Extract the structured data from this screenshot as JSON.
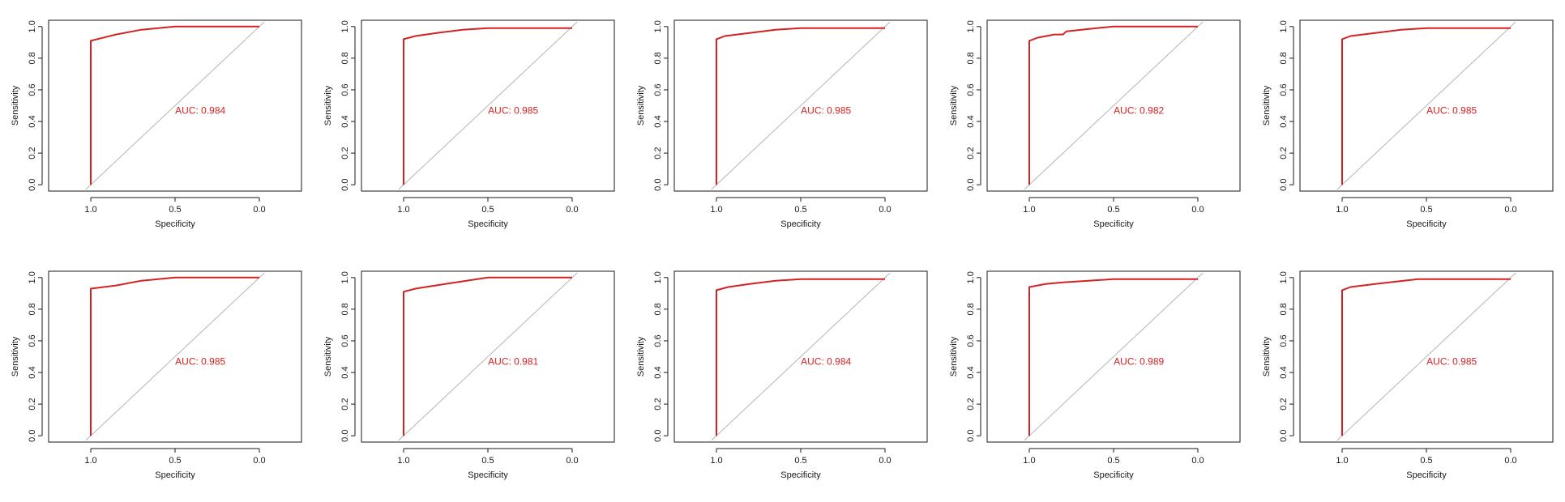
{
  "colors": {
    "roc": "#d32222",
    "diagonal": "#b5b5b5",
    "axis": "#1a1a1a"
  },
  "chart_data": [
    {
      "type": "line",
      "xlabel": "Specificity",
      "ylabel": "Sensitivity",
      "xlim": [
        1.0,
        0.0
      ],
      "ylim": [
        0,
        1
      ],
      "x_ticks": [
        "1.0",
        "0.5",
        "0.0"
      ],
      "y_ticks": [
        "0.0",
        "0.2",
        "0.4",
        "0.6",
        "0.8",
        "1.0"
      ],
      "annotation": "AUC: 0.984",
      "series": [
        {
          "x": [
            1.0,
            1.0,
            0.85,
            0.7,
            0.5,
            0.0
          ],
          "y": [
            0.0,
            0.91,
            0.95,
            0.98,
            1.0,
            1.0
          ]
        }
      ]
    },
    {
      "type": "line",
      "xlabel": "Specificity",
      "ylabel": "Sensitivity",
      "xlim": [
        1.0,
        0.0
      ],
      "ylim": [
        0,
        1
      ],
      "x_ticks": [
        "1.0",
        "0.5",
        "0.0"
      ],
      "y_ticks": [
        "0.0",
        "0.2",
        "0.4",
        "0.6",
        "0.8",
        "1.0"
      ],
      "annotation": "AUC: 0.985",
      "series": [
        {
          "x": [
            1.0,
            1.0,
            0.93,
            0.8,
            0.65,
            0.5,
            0.0
          ],
          "y": [
            0.0,
            0.92,
            0.94,
            0.96,
            0.98,
            0.99,
            0.99
          ]
        }
      ]
    },
    {
      "type": "line",
      "xlabel": "Specificity",
      "ylabel": "Sensitivity",
      "xlim": [
        1.0,
        0.0
      ],
      "ylim": [
        0,
        1
      ],
      "x_ticks": [
        "1.0",
        "0.5",
        "0.0"
      ],
      "y_ticks": [
        "0.0",
        "0.2",
        "0.4",
        "0.6",
        "0.8",
        "1.0"
      ],
      "annotation": "AUC: 0.985",
      "series": [
        {
          "x": [
            1.0,
            1.0,
            0.95,
            0.8,
            0.65,
            0.5,
            0.0
          ],
          "y": [
            0.0,
            0.92,
            0.94,
            0.96,
            0.98,
            0.99,
            0.99
          ]
        }
      ]
    },
    {
      "type": "line",
      "xlabel": "Specificity",
      "ylabel": "Sensitivity",
      "xlim": [
        1.0,
        0.0
      ],
      "ylim": [
        0,
        1
      ],
      "x_ticks": [
        "1.0",
        "0.5",
        "0.0"
      ],
      "y_ticks": [
        "0.0",
        "0.2",
        "0.4",
        "0.6",
        "0.8",
        "1.0"
      ],
      "annotation": "AUC: 0.982",
      "series": [
        {
          "x": [
            1.0,
            1.0,
            0.95,
            0.85,
            0.8,
            0.78,
            0.6,
            0.5,
            0.0
          ],
          "y": [
            0.0,
            0.91,
            0.93,
            0.95,
            0.95,
            0.97,
            0.99,
            1.0,
            1.0
          ]
        }
      ]
    },
    {
      "type": "line",
      "xlabel": "Specificity",
      "ylabel": "Sensitivity",
      "xlim": [
        1.0,
        0.0
      ],
      "ylim": [
        0,
        1
      ],
      "x_ticks": [
        "1.0",
        "0.5",
        "0.0"
      ],
      "y_ticks": [
        "0.0",
        "0.2",
        "0.4",
        "0.6",
        "0.8",
        "1.0"
      ],
      "annotation": "AUC: 0.985",
      "series": [
        {
          "x": [
            1.0,
            1.0,
            0.95,
            0.8,
            0.65,
            0.5,
            0.0
          ],
          "y": [
            0.0,
            0.92,
            0.94,
            0.96,
            0.98,
            0.99,
            0.99
          ]
        }
      ]
    },
    {
      "type": "line",
      "xlabel": "Specificity",
      "ylabel": "Sensitivity",
      "xlim": [
        1.0,
        0.0
      ],
      "ylim": [
        0,
        1
      ],
      "x_ticks": [
        "1.0",
        "0.5",
        "0.0"
      ],
      "y_ticks": [
        "0.0",
        "0.2",
        "0.4",
        "0.6",
        "0.8",
        "1.0"
      ],
      "annotation": "AUC: 0.985",
      "series": [
        {
          "x": [
            1.0,
            1.0,
            0.85,
            0.7,
            0.5,
            0.0
          ],
          "y": [
            0.0,
            0.93,
            0.95,
            0.98,
            1.0,
            1.0
          ]
        }
      ]
    },
    {
      "type": "line",
      "xlabel": "Specificity",
      "ylabel": "Sensitivity",
      "xlim": [
        1.0,
        0.0
      ],
      "ylim": [
        0,
        1
      ],
      "x_ticks": [
        "1.0",
        "0.5",
        "0.0"
      ],
      "y_ticks": [
        "0.0",
        "0.2",
        "0.4",
        "0.6",
        "0.8",
        "1.0"
      ],
      "annotation": "AUC: 0.981",
      "series": [
        {
          "x": [
            1.0,
            1.0,
            0.93,
            0.75,
            0.5,
            0.0
          ],
          "y": [
            0.0,
            0.91,
            0.93,
            0.96,
            1.0,
            1.0
          ]
        }
      ]
    },
    {
      "type": "line",
      "xlabel": "Specificity",
      "ylabel": "Sensitivity",
      "xlim": [
        1.0,
        0.0
      ],
      "ylim": [
        0,
        1
      ],
      "x_ticks": [
        "1.0",
        "0.5",
        "0.0"
      ],
      "y_ticks": [
        "0.0",
        "0.2",
        "0.4",
        "0.6",
        "0.8",
        "1.0"
      ],
      "annotation": "AUC: 0.984",
      "series": [
        {
          "x": [
            1.0,
            1.0,
            0.93,
            0.8,
            0.65,
            0.5,
            0.0
          ],
          "y": [
            0.0,
            0.92,
            0.94,
            0.96,
            0.98,
            0.99,
            0.99
          ]
        }
      ]
    },
    {
      "type": "line",
      "xlabel": "Specificity",
      "ylabel": "Sensitivity",
      "xlim": [
        1.0,
        0.0
      ],
      "ylim": [
        0,
        1
      ],
      "x_ticks": [
        "1.0",
        "0.5",
        "0.0"
      ],
      "y_ticks": [
        "0.0",
        "0.2",
        "0.4",
        "0.6",
        "0.8",
        "1.0"
      ],
      "annotation": "AUC: 0.989",
      "series": [
        {
          "x": [
            1.0,
            1.0,
            0.9,
            0.8,
            0.65,
            0.5,
            0.0
          ],
          "y": [
            0.0,
            0.94,
            0.96,
            0.97,
            0.98,
            0.99,
            0.99
          ]
        }
      ]
    },
    {
      "type": "line",
      "xlabel": "Specificity",
      "ylabel": "Sensitivity",
      "xlim": [
        1.0,
        0.0
      ],
      "ylim": [
        0,
        1
      ],
      "x_ticks": [
        "1.0",
        "0.5",
        "0.0"
      ],
      "y_ticks": [
        "0.0",
        "0.2",
        "0.4",
        "0.6",
        "0.8",
        "1.0"
      ],
      "annotation": "AUC: 0.985",
      "series": [
        {
          "x": [
            1.0,
            1.0,
            0.95,
            0.8,
            0.55,
            0.0
          ],
          "y": [
            0.0,
            0.92,
            0.94,
            0.96,
            0.99,
            0.99
          ]
        }
      ]
    }
  ]
}
